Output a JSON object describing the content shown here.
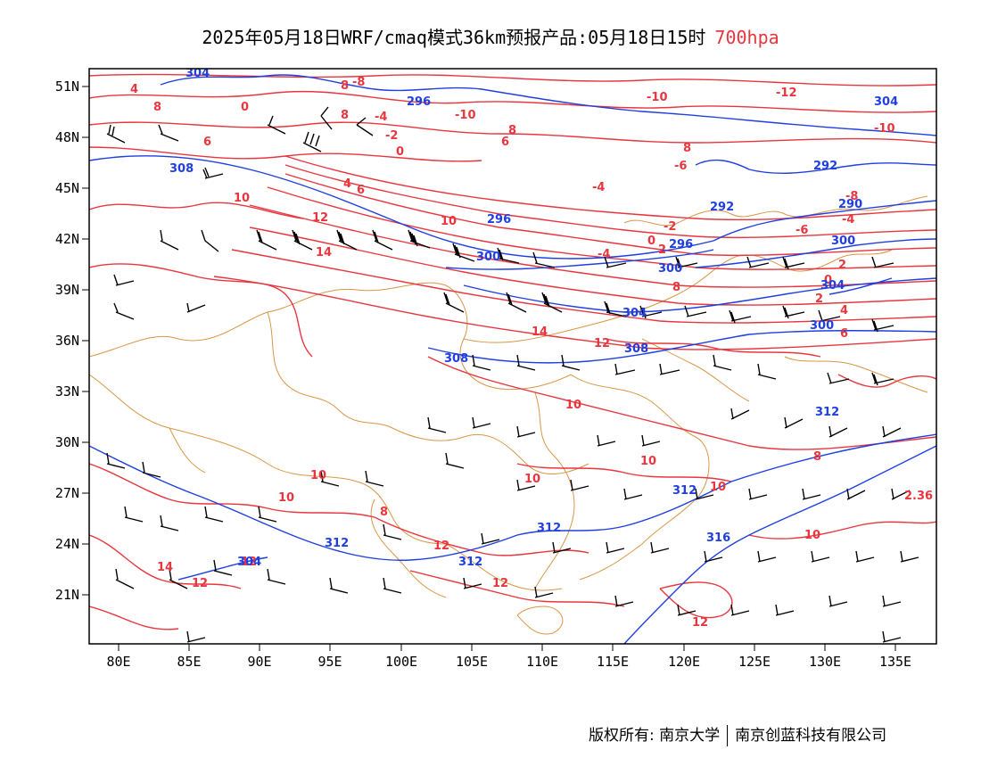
{
  "title": {
    "main": "2025年05月18日WRF/cmaq模式36km预报产品:05月18日15时",
    "level": "700hpa",
    "level_color": "#e8363f"
  },
  "axes": {
    "lat_labels": [
      "51N",
      "48N",
      "45N",
      "42N",
      "39N",
      "36N",
      "33N",
      "30N",
      "27N",
      "24N",
      "21N"
    ],
    "lon_labels": [
      "80E",
      "85E",
      "90E",
      "95E",
      "100E",
      "105E",
      "110E",
      "115E",
      "120E",
      "125E",
      "130E",
      "135E"
    ]
  },
  "colors": {
    "temperature": "#e8363f",
    "geopotential": "#1f3fe0",
    "boundary": "#d99645",
    "wind": "#000000"
  },
  "temperature_labels": [
    "4",
    "8",
    "0",
    "8",
    "8",
    "-4",
    "-2",
    "0",
    "6",
    "8",
    "-10",
    "6",
    "-8",
    "-10",
    "-12",
    "-10",
    "10",
    "12",
    "4",
    "6",
    "14",
    "10",
    "2.36",
    "-6",
    "-4",
    "-2",
    "0",
    "2",
    "-4",
    "-8",
    "8",
    "-6",
    "-4",
    "8",
    "2",
    "0",
    "2",
    "4",
    "6",
    "14",
    "12",
    "10",
    "8",
    "10",
    "10",
    "10",
    "12",
    "10",
    "14",
    "12",
    "12",
    "12",
    "10",
    "12",
    "10",
    "8"
  ],
  "geopotential_labels": [
    "304",
    "296",
    "308",
    "296",
    "292",
    "300",
    "300",
    "296",
    "292",
    "290",
    "300",
    "304",
    "304",
    "308",
    "304",
    "308",
    "312",
    "312",
    "312",
    "312",
    "312",
    "316",
    "300",
    "304"
  ],
  "copyright": {
    "left": "版权所有: 南京大学",
    "right": "南京创蓝科技有限公司"
  }
}
